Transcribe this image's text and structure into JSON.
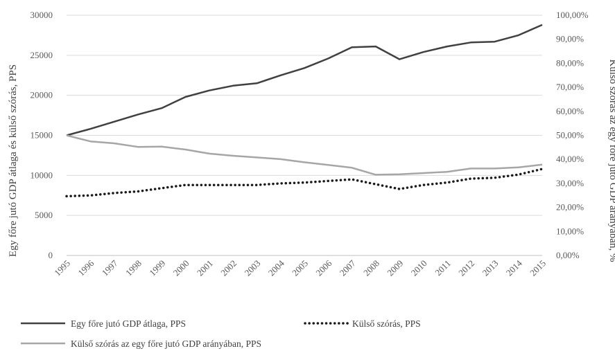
{
  "chart_data": {
    "type": "line",
    "categories": [
      "1995",
      "1996",
      "1997",
      "1998",
      "1999",
      "2000",
      "2001",
      "2002",
      "2003",
      "2004",
      "2005",
      "2006",
      "2007",
      "2008",
      "2009",
      "2010",
      "2011",
      "2012",
      "2013",
      "2014",
      "2015"
    ],
    "series": [
      {
        "name": "Egy főre jutó GDP átlaga, PPS",
        "axis": "left",
        "color": "#404040",
        "style": "solid",
        "values": [
          15000,
          15800,
          16700,
          17600,
          18400,
          19800,
          20600,
          21200,
          21500,
          22500,
          23400,
          24600,
          26000,
          26100,
          24500,
          25400,
          26100,
          26600,
          26700,
          27500,
          28800
        ]
      },
      {
        "name": "Külső szórás, PPS",
        "axis": "left",
        "color": "#1a1a1a",
        "style": "dotted",
        "values": [
          7400,
          7500,
          7800,
          8000,
          8400,
          8800,
          8800,
          8800,
          8800,
          9000,
          9100,
          9300,
          9500,
          8900,
          8300,
          8800,
          9100,
          9600,
          9700,
          10100,
          10800
        ]
      },
      {
        "name": "Külső szórás az egy főre jutó GDP arányában, PPS",
        "axis": "right",
        "color": "#a6a6a6",
        "style": "solid",
        "values": [
          50,
          47.5,
          46.7,
          45.2,
          45.3,
          44.1,
          42.4,
          41.5,
          40.8,
          40.1,
          38.8,
          37.7,
          36.5,
          33.6,
          33.8,
          34.3,
          34.8,
          36.2,
          36.2,
          36.7,
          37.8
        ]
      }
    ],
    "y_left": {
      "label": "Egy főre jutó GDP átlaga és külső szórás, PPS",
      "ylim": [
        0,
        30000
      ],
      "ticks": [
        0,
        5000,
        10000,
        15000,
        20000,
        25000,
        30000
      ],
      "tick_labels": [
        "0",
        "5000",
        "10000",
        "15000",
        "20000",
        "25000",
        "30000"
      ]
    },
    "y_right": {
      "label": "Külső szórás az egy főre jutó GDP arányában, %",
      "ylim": [
        0,
        100
      ],
      "ticks": [
        0,
        10,
        20,
        30,
        40,
        50,
        60,
        70,
        80,
        90,
        100
      ],
      "tick_labels": [
        "0,00%",
        "10,00%",
        "20,00%",
        "30,00%",
        "40,00%",
        "50,00%",
        "60,00%",
        "70,00%",
        "80,00%",
        "90,00%",
        "100,00%"
      ]
    },
    "grid": true,
    "legend_position": "bottom"
  }
}
